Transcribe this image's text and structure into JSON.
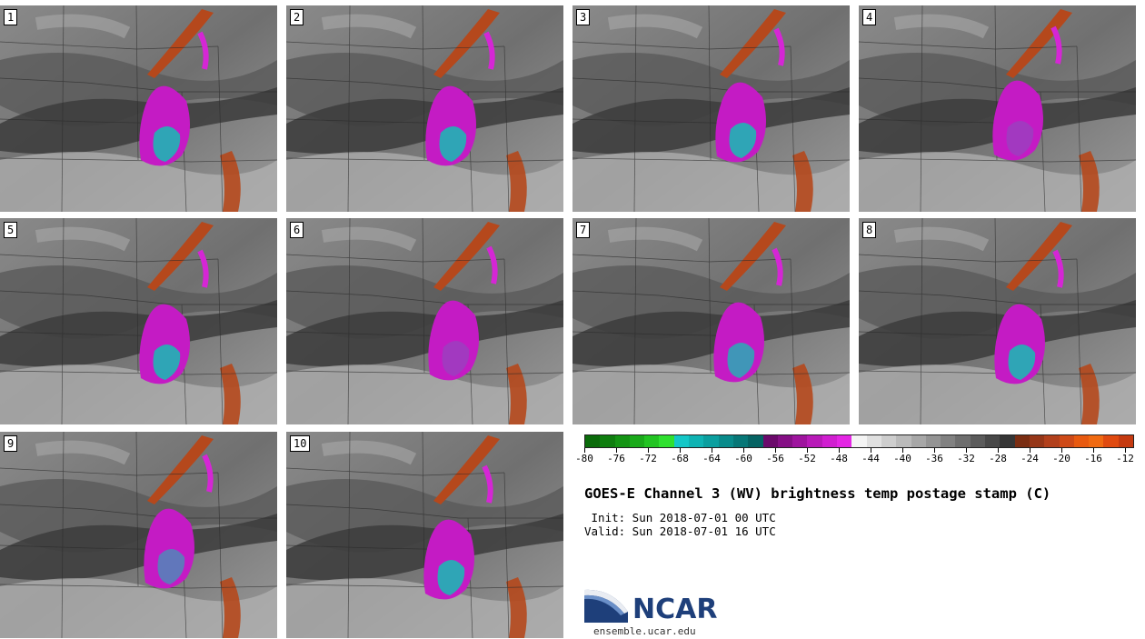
{
  "panels": [
    {
      "label": "1"
    },
    {
      "label": "2"
    },
    {
      "label": "3"
    },
    {
      "label": "4"
    },
    {
      "label": "5"
    },
    {
      "label": "6"
    },
    {
      "label": "7"
    },
    {
      "label": "8"
    },
    {
      "label": "9"
    },
    {
      "label": "10"
    }
  ],
  "colorbar": {
    "colors": [
      "#0a6b0a",
      "#0f7e0f",
      "#149414",
      "#1aaa1a",
      "#22c422",
      "#2fe02f",
      "#14c7c7",
      "#0fb3b3",
      "#0b9f9f",
      "#098b8b",
      "#077777",
      "#056363",
      "#6b0a6b",
      "#850f85",
      "#9e149e",
      "#b81ab8",
      "#d01fd0",
      "#e426e4",
      "#f4f4f4",
      "#e0e0e0",
      "#cdcdcd",
      "#bababa",
      "#a7a7a7",
      "#949494",
      "#818181",
      "#6e6e6e",
      "#5b5b5b",
      "#484848",
      "#353535",
      "#7a2d12",
      "#963618",
      "#b2401c",
      "#ce4a18",
      "#e85a10",
      "#f06a12",
      "#e04a10",
      "#c53a10"
    ],
    "ticks": [
      "-80",
      "-76",
      "-72",
      "-68",
      "-64",
      "-60",
      "-56",
      "-52",
      "-48",
      "-44",
      "-40",
      "-36",
      "-32",
      "-28",
      "-24",
      "-20",
      "-16",
      "-12"
    ]
  },
  "title": "GOES-E Channel 3 (WV) brightness temp postage stamp (C)",
  "init_line": " Init: Sun 2018-07-01 00 UTC",
  "valid_line": "Valid: Sun 2018-07-01 16 UTC",
  "logo": {
    "text": "NCAR",
    "url": "ensemble.ucar.edu",
    "color": "#1e3f7a"
  }
}
